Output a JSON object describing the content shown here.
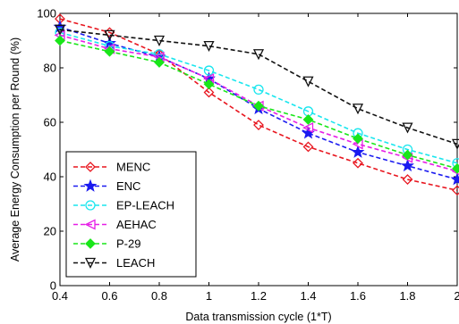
{
  "chart_data": {
    "type": "line",
    "title": "",
    "xlabel": "Data transmission cycle (1*T)",
    "ylabel": "Average Energy Consumption per Round (%)",
    "xlim": [
      0.4,
      2
    ],
    "ylim": [
      0,
      100
    ],
    "xticks": [
      0.4,
      0.6,
      0.8,
      1,
      1.2,
      1.4,
      1.6,
      1.8,
      2
    ],
    "xtick_labels": [
      "0.4",
      "0.6",
      "0.8",
      "1",
      "1.2",
      "1.4",
      "1.6",
      "1.8",
      "2"
    ],
    "yticks": [
      0,
      20,
      40,
      60,
      80,
      100
    ],
    "ytick_labels": [
      "0",
      "20",
      "40",
      "60",
      "80",
      "100"
    ],
    "grid": false,
    "legend_position": "bottom-left",
    "x": [
      0.4,
      0.6,
      0.8,
      1,
      1.2,
      1.4,
      1.6,
      1.8,
      2
    ],
    "series": [
      {
        "name": "MENC",
        "color": "#e8161f",
        "marker": "diamond",
        "values": [
          98,
          93,
          85,
          71,
          59,
          51,
          45,
          39,
          35
        ]
      },
      {
        "name": "ENC",
        "color": "#1a1af0",
        "marker": "star",
        "values": [
          95,
          89,
          84,
          76,
          65,
          56,
          49,
          44,
          39
        ]
      },
      {
        "name": "EP-LEACH",
        "color": "#19e6ee",
        "marker": "circle",
        "values": [
          93,
          88,
          85,
          79,
          72,
          64,
          56,
          50,
          45
        ]
      },
      {
        "name": "AEHAC",
        "color": "#e61ee6",
        "marker": "triangle-left",
        "values": [
          92,
          87,
          84,
          76,
          66,
          58,
          52,
          47,
          42
        ]
      },
      {
        "name": "P-29",
        "color": "#19e619",
        "marker": "diamond-filled",
        "values": [
          90,
          86,
          82,
          74,
          66,
          61,
          54,
          48,
          43
        ]
      },
      {
        "name": "LEACH",
        "color": "#111111",
        "marker": "triangle-down",
        "values": [
          94,
          92,
          90,
          88,
          85,
          75,
          65,
          58,
          52
        ]
      }
    ]
  }
}
